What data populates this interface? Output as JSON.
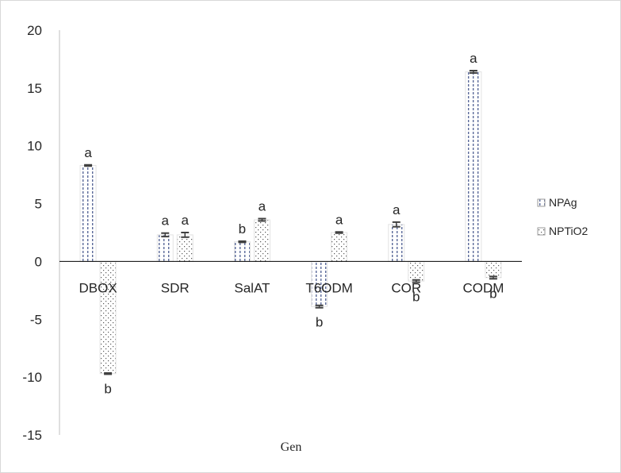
{
  "chart_data": {
    "type": "bar",
    "title": "",
    "xlabel": "Gen",
    "ylabel": "",
    "ylim": [
      -15,
      20
    ],
    "yticks": [
      20,
      15,
      10,
      5,
      0,
      -5,
      -10,
      -15
    ],
    "grid": false,
    "legend_position": "right",
    "categories": [
      "DBOX",
      "SDR",
      "SalAT",
      "T6ODM",
      "COR",
      "CODM"
    ],
    "series": [
      {
        "name": "NPAg",
        "values": [
          8.3,
          2.3,
          1.7,
          -3.9,
          3.2,
          16.4
        ],
        "errors": [
          0.05,
          0.15,
          0.05,
          0.1,
          0.2,
          0.1
        ],
        "letters": [
          "a",
          "a",
          "b",
          "b",
          "a",
          "a"
        ],
        "color": "#5b6a9a"
      },
      {
        "name": "NPTiO2",
        "values": [
          -9.7,
          2.3,
          3.6,
          2.5,
          -1.7,
          -1.4
        ],
        "errors": [
          0.05,
          0.2,
          0.1,
          0.05,
          0.1,
          0.1
        ],
        "letters": [
          "b",
          "a",
          "a",
          "a",
          "b",
          "b"
        ],
        "color": "#555555"
      }
    ]
  }
}
